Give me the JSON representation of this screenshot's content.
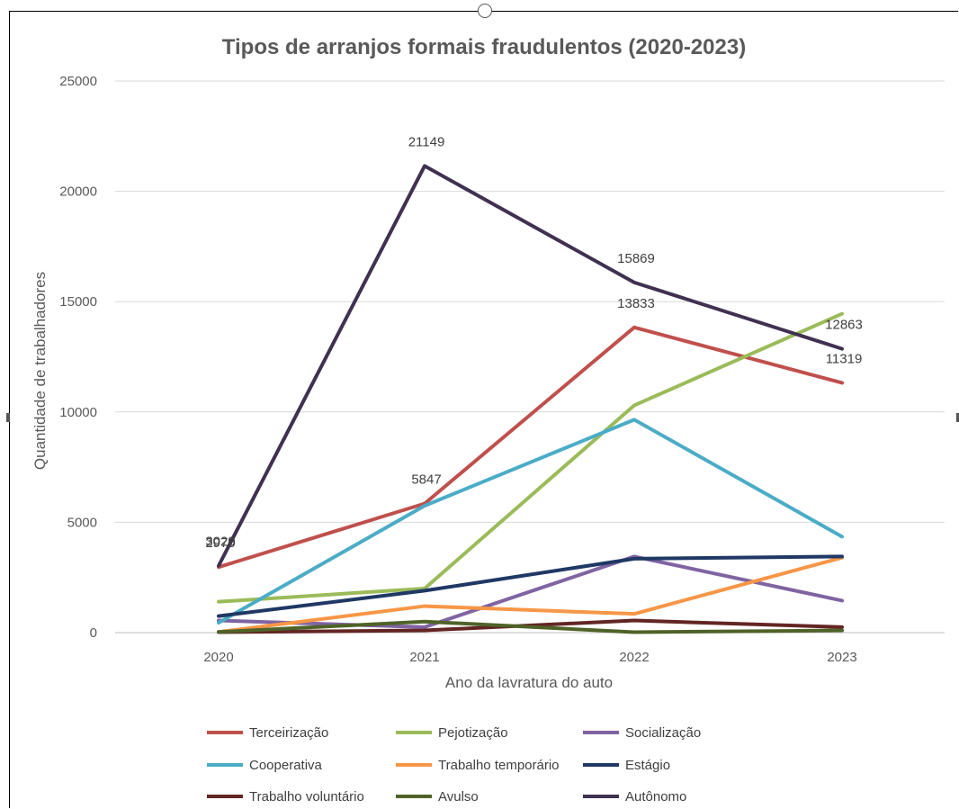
{
  "chart_data": {
    "type": "line",
    "title": "Tipos de arranjos formais fraudulentos (2020-2023)",
    "xlabel": "Ano da lavratura do auto",
    "ylabel": "Quantidade de trabalhadores",
    "categories": [
      "2020",
      "2021",
      "2022",
      "2023"
    ],
    "ylim": [
      0,
      25000
    ],
    "yticks": [
      "0",
      "5000",
      "10000",
      "15000",
      "20000",
      "25000"
    ],
    "grid": true,
    "legend_position": "bottom",
    "series": [
      {
        "name": "Terceirização",
        "color": "#c0504d",
        "values": [
          2970,
          5847,
          13833,
          11319
        ],
        "labels": [
          "2970",
          "5847",
          "13833",
          "11319"
        ]
      },
      {
        "name": "Pejotização",
        "color": "#9bbb59",
        "values": [
          1400,
          2000,
          10300,
          14450
        ],
        "labels": []
      },
      {
        "name": "Socialização",
        "color": "#8064a2",
        "values": [
          550,
          250,
          3450,
          1450
        ],
        "labels": []
      },
      {
        "name": "Cooperativa",
        "color": "#4bacc6",
        "values": [
          450,
          5750,
          9650,
          4350
        ],
        "labels": []
      },
      {
        "name": "Trabalho temporário",
        "color": "#f79646",
        "values": [
          30,
          1200,
          850,
          3400
        ],
        "labels": []
      },
      {
        "name": "Estágio",
        "color": "#1f3864",
        "values": [
          750,
          1900,
          3350,
          3450
        ],
        "labels": []
      },
      {
        "name": "Trabalho voluntário",
        "color": "#632523",
        "values": [
          20,
          100,
          550,
          250
        ],
        "labels": []
      },
      {
        "name": "Avulso",
        "color": "#4f6228",
        "values": [
          30,
          500,
          20,
          100
        ],
        "labels": []
      },
      {
        "name": "Autônomo",
        "color": "#403151",
        "values": [
          3029,
          21149,
          15869,
          12863
        ],
        "labels": [
          "3029",
          "21149",
          "15869",
          "12863"
        ]
      }
    ]
  }
}
